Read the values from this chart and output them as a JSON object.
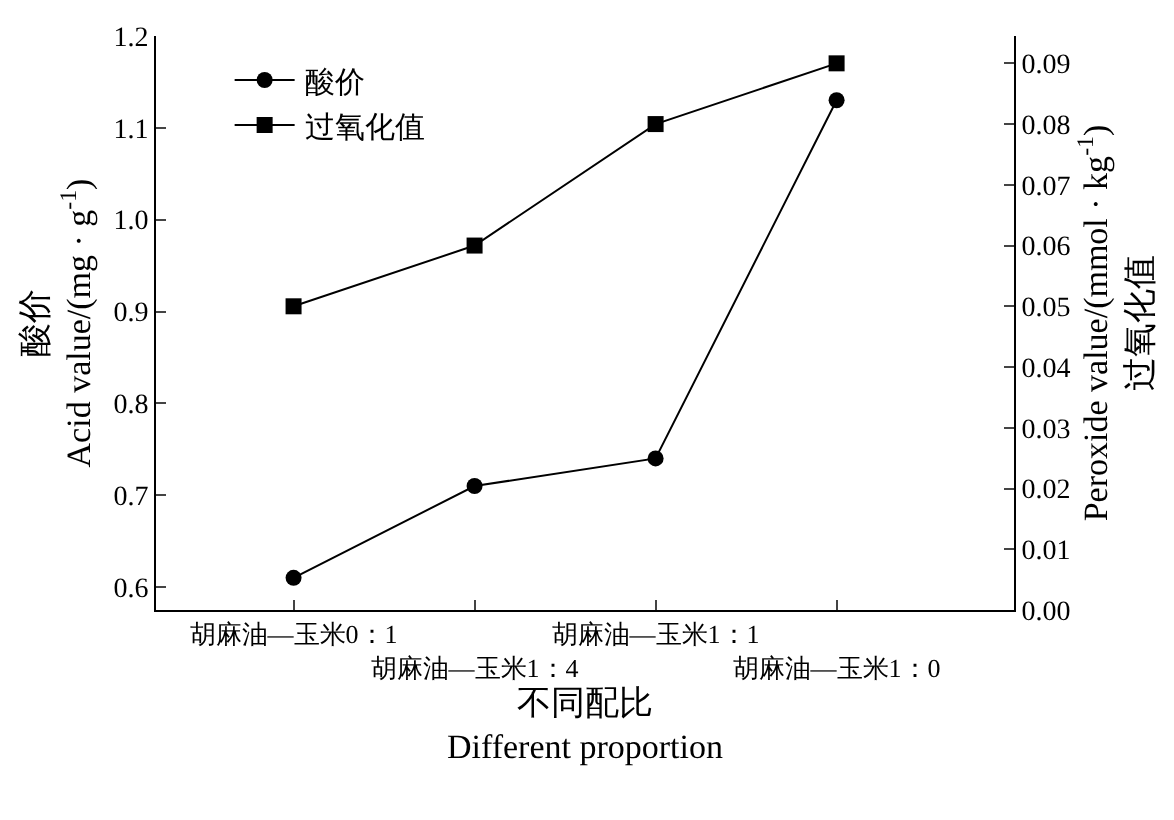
{
  "chart_data": {
    "type": "line",
    "categories": [
      "胡麻油—玉米0：1",
      "胡麻油—玉米1：4",
      "胡麻油—玉米1：1",
      "胡麻油—玉米1：0"
    ],
    "xlabel": "不同配比\nDifferent proportion",
    "ylabel": "酸价\nAcid value/(mg · g$^{-1}$)",
    "y2label": "Peroxide value/(mmol · kg$^{-1}$)\n过氧化值",
    "series": [
      {
        "name": "酸价",
        "color": "#000000",
        "marker": "circle",
        "values": [
          0.61,
          0.71,
          0.74,
          1.13
        ]
      },
      {
        "name": "过氧化值",
        "color": "#000000",
        "marker": "square",
        "axis": "y2",
        "values": [
          0.05,
          0.06,
          0.08,
          0.09
        ]
      }
    ],
    "ylim": [
      0.575,
      1.2
    ],
    "yticks": [
      0.6,
      0.7,
      0.8,
      0.9,
      {
        "value": 1,
        "label": "1.0"
      },
      1.1,
      1.2
    ],
    "y2lim": [
      0,
      0.0945
    ],
    "y2ticks": [
      {
        "value": 0,
        "label": "0.00"
      },
      0.01,
      0.02,
      0.03,
      0.04,
      0.05,
      0.06,
      0.07,
      0.08,
      0.09
    ],
    "grid": false,
    "legend": "top left",
    "line_style": "solid"
  }
}
